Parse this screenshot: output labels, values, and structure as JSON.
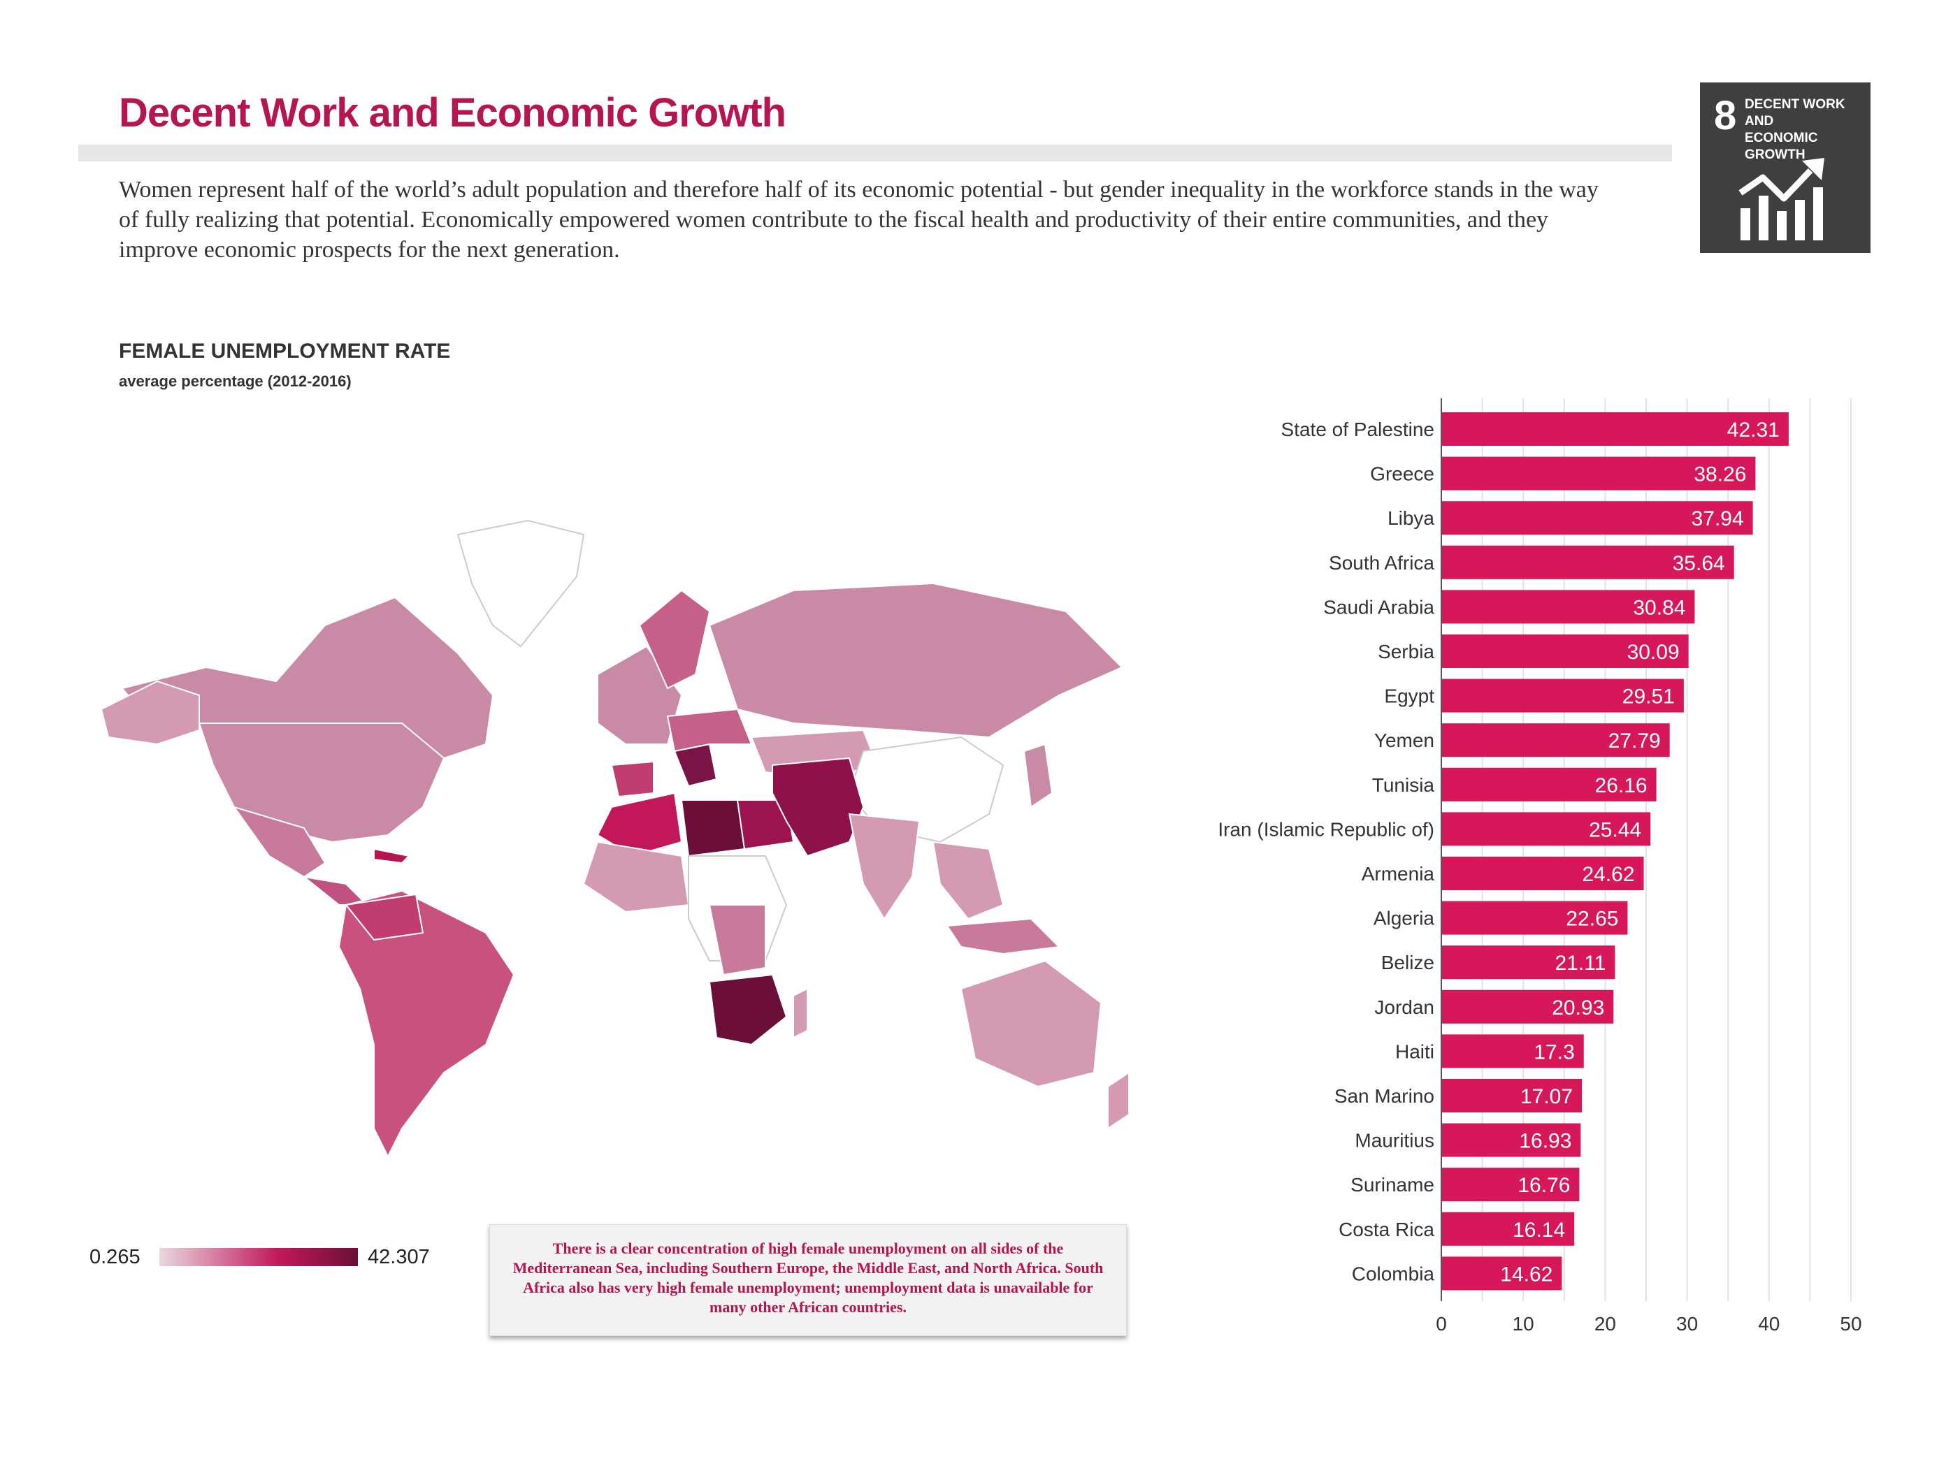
{
  "page": {
    "title": "Decent Work and Economic Growth",
    "intro": "Women represent half of the world’s adult population and therefore half of its economic potential - but gender inequality in the workforce stands in the way of fully realizing that potential. Economically empowered women contribute to the fiscal health and productivity of their entire communities, and they improve economic prospects for the next generation."
  },
  "sdg_badge": {
    "number": "8",
    "label": "DECENT WORK AND\nECONOMIC GROWTH",
    "icon": "growth-chart-icon"
  },
  "section": {
    "title": "FEMALE UNEMPLOYMENT RATE",
    "subtitle": "average percentage (2012-2016)"
  },
  "legend": {
    "min": "0.265",
    "max": "42.307",
    "colors": [
      "#e8d8df",
      "#c2185b",
      "#6b0f3a"
    ]
  },
  "note": "There is a clear concentration of high female unemployment on all sides of the Mediterranean Sea, including Southern Europe, the Middle East, and North Africa. South Africa also has very high female unemployment; unemployment data is unavailable for many other African countries.",
  "colors": {
    "accent": "#b5164f",
    "bar": "#d6185a",
    "map_low": "#c98aa5"
  },
  "chart_data": {
    "type": "bar",
    "orientation": "horizontal",
    "categories": [
      "State of Palestine",
      "Greece",
      "Libya",
      "South Africa",
      "Saudi Arabia",
      "Serbia",
      "Egypt",
      "Yemen",
      "Tunisia",
      "Iran (Islamic Republic of)",
      "Armenia",
      "Algeria",
      "Belize",
      "Jordan",
      "Haiti",
      "San Marino",
      "Mauritius",
      "Suriname",
      "Costa Rica",
      "Colombia"
    ],
    "values": [
      42.31,
      38.26,
      37.94,
      35.64,
      30.84,
      30.09,
      29.51,
      27.79,
      26.16,
      25.44,
      24.62,
      22.65,
      21.11,
      20.93,
      17.3,
      17.07,
      16.93,
      16.76,
      16.14,
      14.62
    ],
    "value_labels": [
      "42.31",
      "38.26",
      "37.94",
      "35.64",
      "30.84",
      "30.09",
      "29.51",
      "27.79",
      "26.16",
      "25.44",
      "24.62",
      "22.65",
      "21.11",
      "20.93",
      "17.3",
      "17.07",
      "16.93",
      "16.76",
      "16.14",
      "14.62"
    ],
    "xlim": [
      0,
      50
    ],
    "xticks": [
      "0",
      "10",
      "20",
      "30",
      "40",
      "50"
    ],
    "grid": true
  }
}
